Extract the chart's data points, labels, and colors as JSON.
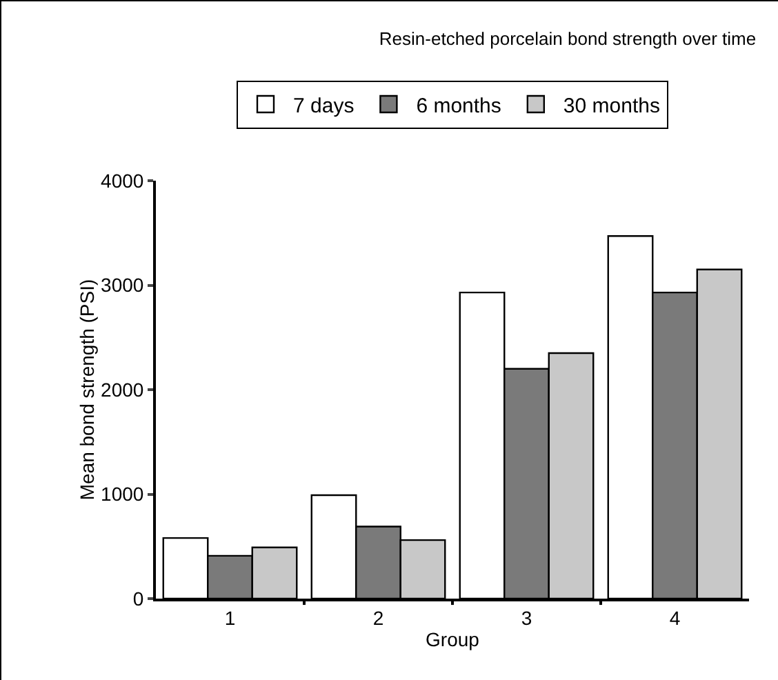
{
  "chart_data": {
    "type": "bar",
    "title": "Resin-etched porcelain bond strength over time",
    "xlabel": "Group",
    "ylabel": "Mean bond strength (PSI)",
    "categories": [
      "1",
      "2",
      "3",
      "4"
    ],
    "series": [
      {
        "name": "7 days",
        "color": "#ffffff",
        "values": [
          580,
          990,
          2930,
          3470
        ]
      },
      {
        "name": "6 months",
        "color": "#7a7a7a",
        "values": [
          410,
          690,
          2200,
          2930
        ]
      },
      {
        "name": "30 months",
        "color": "#c8c8c8",
        "values": [
          490,
          560,
          2350,
          3150
        ]
      }
    ],
    "ylim": [
      0,
      4000
    ],
    "yticks": [
      0,
      1000,
      2000,
      3000,
      4000
    ],
    "grid": false,
    "legend": "top"
  }
}
